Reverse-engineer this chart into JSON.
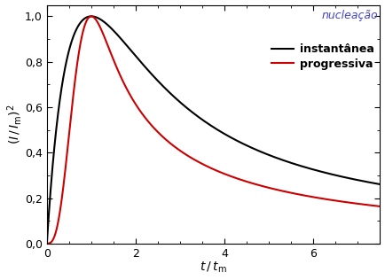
{
  "xlabel_text": "$t\\,/\\,t_\\mathrm{m}$",
  "ylabel_text": "$(I\\,/\\,I_\\mathrm{m})^2$",
  "xlim": [
    0,
    7.5
  ],
  "ylim": [
    0.0,
    1.05
  ],
  "yticks": [
    0.0,
    0.2,
    0.4,
    0.6,
    0.8,
    1.0
  ],
  "xticks": [
    0,
    2,
    4,
    6
  ],
  "legend_nucleacao": "nucleação",
  "legend_instantanea": "instantânea",
  "legend_progressiva": "progressiva",
  "color_instantanea": "#000000",
  "color_progressiva": "#cc0000",
  "color_nucleacao_text": "#4444cc",
  "line_width": 1.5,
  "bg_color": "#ffffff"
}
